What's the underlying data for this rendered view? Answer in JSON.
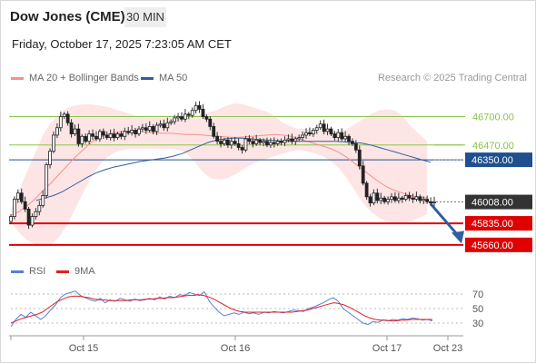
{
  "header": {
    "title": "Dow Jones (CME)",
    "timeframe": "30 MIN",
    "datetime": "Friday, October 17, 2025 7:23:05 AM CET"
  },
  "legend": {
    "items": [
      {
        "label": "MA 20 + Bollinger Bands",
        "color": "#f4918c"
      },
      {
        "label": "MA 50",
        "color": "#2f5f9e"
      }
    ],
    "credit": "Research © 2025 Trading Central"
  },
  "rsi_legend": {
    "items": [
      {
        "label": "RSI",
        "color": "#5b7fd6"
      },
      {
        "label": "9MA",
        "color": "#e02020"
      }
    ]
  },
  "chart_data": [
    {
      "type": "candlestick",
      "ylim": [
        45600,
        46910
      ],
      "current_price": {
        "value": "46008.00",
        "color": "#333333"
      },
      "levels": [
        {
          "label": "46700.00",
          "value": 46700,
          "kind": "resistance",
          "color": "#8bc34a"
        },
        {
          "label": "46470.00",
          "value": 46470,
          "kind": "resistance",
          "color": "#8bc34a"
        },
        {
          "label": "46350.00",
          "value": 46350,
          "kind": "pivot",
          "color": "#1f4f8f"
        },
        {
          "label": "45835.00",
          "value": 45835,
          "kind": "support",
          "color": "#e00000"
        },
        {
          "label": "45660.00",
          "value": 45660,
          "kind": "support",
          "color": "#e00000"
        }
      ],
      "x_ticks": [
        "Oct 15",
        "Oct 16",
        "Oct 17",
        "Oct 23"
      ],
      "forecast_arrow": {
        "from": 46008,
        "to": 45700,
        "color": "#2f5f9e"
      },
      "closes": [
        45890,
        46030,
        46080,
        46010,
        45950,
        45820,
        45890,
        45930,
        45980,
        46060,
        46310,
        46420,
        46550,
        46610,
        46700,
        46720,
        46650,
        46560,
        46600,
        46480,
        46540,
        46500,
        46560,
        46540,
        46520,
        46580,
        46550,
        46530,
        46560,
        46530,
        46560,
        46540,
        46580,
        46570,
        46590,
        46560,
        46600,
        46610,
        46590,
        46620,
        46580,
        46630,
        46640,
        46610,
        46650,
        46660,
        46690,
        46700,
        46680,
        46720,
        46710,
        46750,
        46790,
        46760,
        46700,
        46680,
        46620,
        46540,
        46500,
        46480,
        46510,
        46470,
        46500,
        46480,
        46450,
        46430,
        46520,
        46500,
        46480,
        46510,
        46490,
        46500,
        46470,
        46490,
        46480,
        46500,
        46490,
        46510,
        46520,
        46500,
        46520,
        46530,
        46550,
        46570,
        46560,
        46590,
        46610,
        46640,
        46580,
        46600,
        46560,
        46530,
        46570,
        46520,
        46540,
        46500,
        46480,
        46430,
        46300,
        46160,
        46050,
        46000,
        46080,
        46020,
        46040,
        46010,
        46030,
        46050,
        46020,
        46040,
        46030,
        46060,
        46040,
        46030,
        46050,
        46020,
        46030,
        46010,
        46000,
        46008
      ],
      "bb_upper": [
        45950,
        46100,
        46250,
        46400,
        46550,
        46650,
        46720,
        46770,
        46790,
        46800,
        46800,
        46790,
        46780,
        46760,
        46740,
        46720,
        46700,
        46690,
        46690,
        46690,
        46690,
        46690,
        46700,
        46710,
        46720,
        46740,
        46760,
        46790,
        46810,
        46800,
        46780,
        46760,
        46740,
        46700,
        46650,
        46620,
        46600,
        46600,
        46590,
        46580,
        46580,
        46580,
        46600,
        46640,
        46680,
        46720,
        46750,
        46760,
        46750,
        46700,
        46620,
        46560,
        46500
      ],
      "bb_lower": [
        45850,
        45760,
        45700,
        45660,
        45650,
        45660,
        45720,
        45820,
        45950,
        46080,
        46200,
        46300,
        46370,
        46410,
        46430,
        46440,
        46440,
        46440,
        46440,
        46440,
        46440,
        46430,
        46400,
        46330,
        46250,
        46200,
        46190,
        46200,
        46230,
        46270,
        46310,
        46340,
        46360,
        46380,
        46400,
        46420,
        46430,
        46420,
        46400,
        46380,
        46340,
        46280,
        46200,
        46100,
        46000,
        45930,
        45880,
        45850,
        45840,
        45840,
        45850,
        45880,
        45910
      ],
      "ma20": [
        45900,
        45930,
        45975,
        46030,
        46100,
        46160,
        46230,
        46300,
        46370,
        46430,
        46490,
        46530,
        46555,
        46570,
        46580,
        46585,
        46580,
        46575,
        46570,
        46565,
        46565,
        46560,
        46555,
        46555,
        46550,
        46545,
        46540,
        46535,
        46530,
        46535,
        46540,
        46545,
        46550,
        46555,
        46550,
        46540,
        46520,
        46500,
        46480,
        46460,
        46440,
        46410,
        46370,
        46320,
        46270,
        46220,
        46170,
        46130,
        46100,
        46080,
        46060,
        46050,
        46040
      ],
      "ma50": [
        46020,
        46040,
        46060,
        46090,
        46130,
        46170,
        46210,
        46245,
        46270,
        46290,
        46305,
        46320,
        46335,
        46345,
        46355,
        46365,
        46380,
        46400,
        46430,
        46460,
        46490,
        46510,
        46520,
        46525,
        46525,
        46520,
        46515,
        46510,
        46505,
        46500,
        46500,
        46500,
        46500,
        46500,
        46500,
        46500,
        46495,
        46490,
        46485,
        46470,
        46450,
        46430,
        46410,
        46390,
        46370,
        46350,
        46330
      ],
      "rsi": {
        "ylim": [
          20,
          80
        ],
        "y_ticks": [
          70,
          50,
          30
        ],
        "rsi": [
          25,
          35,
          42,
          38,
          45,
          40,
          35,
          40,
          48,
          55,
          65,
          70,
          72,
          74,
          68,
          65,
          62,
          60,
          64,
          58,
          62,
          60,
          64,
          62,
          60,
          63,
          61,
          62,
          64,
          62,
          66,
          63,
          67,
          65,
          69,
          68,
          72,
          70,
          68,
          73,
          60,
          52,
          45,
          40,
          42,
          44,
          42,
          45,
          43,
          44,
          42,
          45,
          44,
          46,
          45,
          44,
          46,
          48,
          47,
          46,
          50,
          52,
          55,
          58,
          62,
          65,
          60,
          50,
          45,
          40,
          35,
          30,
          28,
          32,
          31,
          34,
          33,
          35,
          34,
          36,
          35,
          37,
          36,
          34,
          35,
          33
        ],
        "ma9": [
          30,
          33,
          36,
          38,
          40,
          42,
          45,
          50,
          55,
          60,
          63,
          66,
          67,
          67,
          66,
          65,
          63,
          62,
          62,
          61,
          61,
          61,
          61,
          62,
          62,
          62,
          63,
          63,
          64,
          64,
          65,
          65,
          66,
          67,
          68,
          68,
          69,
          68,
          66,
          63,
          59,
          55,
          51,
          48,
          46,
          45,
          45,
          45,
          45,
          45,
          45,
          45,
          45,
          45,
          45,
          46,
          47,
          48,
          50,
          52,
          54,
          56,
          58,
          57,
          55,
          52,
          48,
          44,
          40,
          37,
          35,
          34,
          34,
          33,
          33,
          34,
          34,
          35,
          35,
          35,
          35,
          35
        ]
      }
    }
  ]
}
